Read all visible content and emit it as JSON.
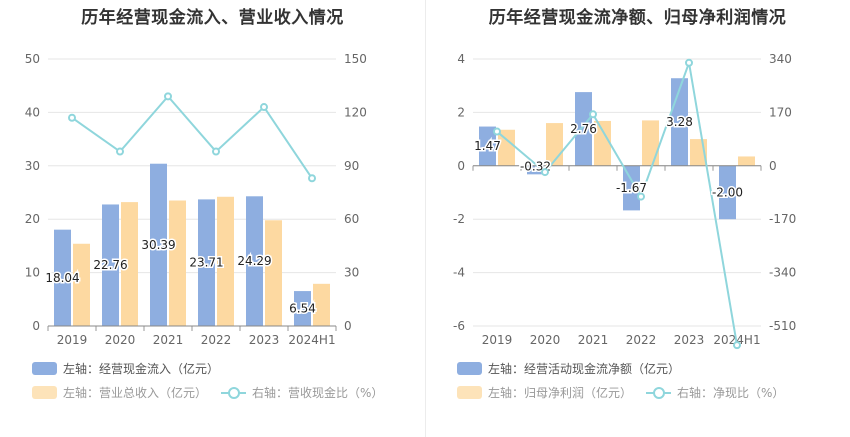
{
  "colors": {
    "bar1": "#8eaee0",
    "bar2": "#fdd9a1",
    "line": "#8fd6dc",
    "grid": "#e6e6e6",
    "axisText": "#666666",
    "label": "#222222"
  },
  "left": {
    "title": "历年经营现金流入、营业收入情况",
    "legend": {
      "s1": "左轴：经营现金流入（亿元）",
      "s2": "左轴：营业总收入（亿元）",
      "s3": "右轴：营收现金比（%）"
    }
  },
  "right": {
    "title": "历年经营现金流净额、归母净利润情况",
    "legend": {
      "s1": "左轴：经营活动现金流净额（亿元）",
      "s2": "左轴：归母净利润（亿元）",
      "s3": "右轴：净现比（%）"
    }
  },
  "chart_data": [
    {
      "type": "bar",
      "categories": [
        "2019",
        "2020",
        "2021",
        "2022",
        "2023",
        "2024H1"
      ],
      "series": [
        {
          "name": "左轴：经营现金流入（亿元）",
          "axis": "left",
          "values": [
            18.04,
            22.76,
            30.39,
            23.71,
            24.29,
            6.54
          ],
          "labels": [
            "18.04",
            "22.76",
            "30.39",
            "23.71",
            "24.29",
            "6.54"
          ]
        },
        {
          "name": "左轴：营业总收入（亿元）",
          "axis": "left",
          "values": [
            15.4,
            23.2,
            23.5,
            24.2,
            19.8,
            7.9
          ]
        },
        {
          "name": "右轴：营收现金比（%）",
          "axis": "right",
          "type": "line",
          "values": [
            117,
            98,
            129,
            98,
            123,
            83
          ]
        }
      ],
      "left_axis": {
        "min": 0,
        "max": 50,
        "ticks": [
          "0",
          "10",
          "20",
          "30",
          "40",
          "50"
        ]
      },
      "right_axis": {
        "min": 0,
        "max": 150,
        "ticks": [
          "0",
          "30",
          "60",
          "90",
          "120",
          "150"
        ]
      },
      "grid": true,
      "legend_position": "bottom"
    },
    {
      "type": "bar",
      "categories": [
        "2019",
        "2020",
        "2021",
        "2022",
        "2023",
        "2024H1"
      ],
      "series": [
        {
          "name": "左轴：经营活动现金流净额（亿元）",
          "axis": "left",
          "values": [
            1.47,
            -0.32,
            2.76,
            -1.67,
            3.28,
            -2.0
          ],
          "labels": [
            "1.47",
            "-0.32",
            "2.76",
            "-1.67",
            "3.28",
            "-2.00"
          ]
        },
        {
          "name": "左轴：归母净利润（亿元）",
          "axis": "left",
          "values": [
            1.35,
            1.6,
            1.68,
            1.7,
            1.0,
            0.35
          ]
        },
        {
          "name": "右轴：净现比（%）",
          "axis": "right",
          "type": "line",
          "values": [
            109,
            -20,
            164,
            -98,
            328,
            -571
          ]
        }
      ],
      "left_axis": {
        "min": -6,
        "max": 4,
        "ticks": [
          "-6",
          "-4",
          "-2",
          "0",
          "2",
          "4"
        ]
      },
      "right_axis": {
        "min": -510,
        "max": 340,
        "ticks": [
          "-510",
          "-340",
          "-170",
          "0",
          "170",
          "340"
        ]
      },
      "grid": true,
      "legend_position": "bottom"
    }
  ]
}
